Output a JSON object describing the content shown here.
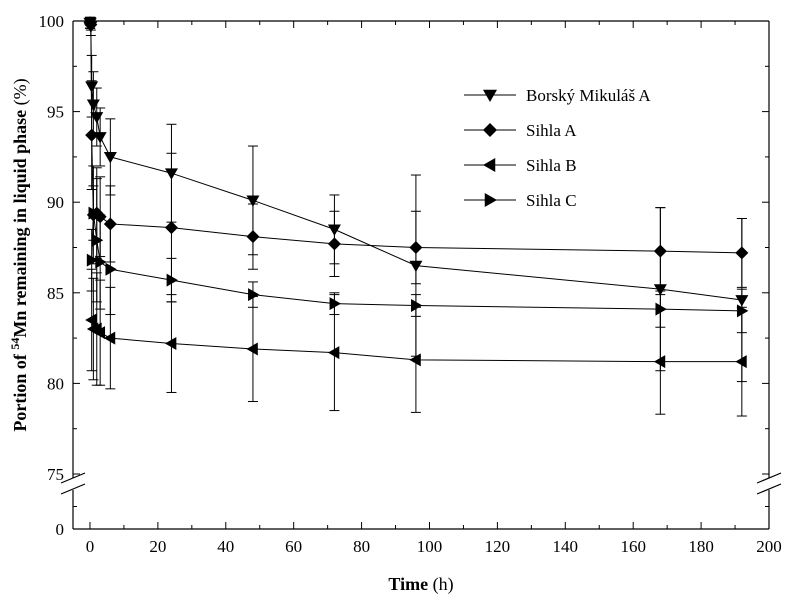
{
  "chart_data": {
    "type": "line",
    "title": "",
    "xlabel": {
      "bold": "Time",
      "unit": " (h)"
    },
    "ylabel": {
      "bold_prefix": "Portion of ",
      "superscript": "54",
      "bold_suffix": "Mn remaining in liquid phase",
      "unit": " (%)"
    },
    "xlim": [
      -5,
      200
    ],
    "x_ticks": [
      0,
      20,
      40,
      60,
      80,
      100,
      120,
      140,
      160,
      180,
      200
    ],
    "y_ticks_upper": [
      75,
      80,
      85,
      90,
      95,
      100
    ],
    "y_ticks_lower": [
      0
    ],
    "y_axis_break": [
      0,
      75
    ],
    "grid": false,
    "legend_position": "top-right",
    "series": [
      {
        "name": "Borský Mikuláš A",
        "marker": "triangle-down",
        "x": [
          0,
          0.08,
          0.25,
          0.5,
          1,
          2,
          3,
          6,
          24,
          48,
          72,
          96,
          168,
          192
        ],
        "y": [
          99.9,
          99.9,
          99.7,
          96.4,
          95.4,
          94.7,
          93.6,
          92.5,
          91.6,
          90.1,
          88.5,
          86.5,
          85.2,
          84.6
        ],
        "err": [
          0.3,
          0.3,
          0.5,
          1.7,
          1.8,
          1.6,
          1.6,
          2.1,
          2.7,
          3.0,
          1.9,
          5.0,
          4.5,
          4.5
        ]
      },
      {
        "name": "Sihla A",
        "marker": "diamond",
        "x": [
          0,
          0.25,
          0.5,
          1,
          2,
          3,
          6,
          24,
          48,
          72,
          96,
          168,
          192
        ],
        "y": [
          99.9,
          99.8,
          93.7,
          89.3,
          89.4,
          89.2,
          88.8,
          88.6,
          88.1,
          87.7,
          87.5,
          87.3,
          87.2
        ],
        "err": [
          0.3,
          0.3,
          3.0,
          2.7,
          2.5,
          2.2,
          2.1,
          4.1,
          1.8,
          1.8,
          2.0,
          2.4,
          1.9
        ]
      },
      {
        "name": "Sihla B",
        "marker": "triangle-left",
        "x": [
          0.5,
          1,
          2,
          3,
          6,
          24,
          48,
          72,
          96,
          168,
          192
        ],
        "y": [
          83.5,
          83.0,
          83.0,
          82.8,
          82.5,
          82.2,
          81.9,
          81.7,
          81.3,
          81.2,
          81.2
        ],
        "err": [
          2.8,
          2.8,
          3.1,
          2.9,
          2.8,
          2.7,
          2.9,
          3.2,
          2.9,
          2.9,
          3.0
        ]
      },
      {
        "name": "Sihla C",
        "marker": "triangle-right",
        "x": [
          0.5,
          1,
          2,
          3,
          6,
          24,
          48,
          72,
          96,
          168,
          192
        ],
        "y": [
          86.8,
          89.4,
          87.9,
          86.7,
          86.3,
          85.7,
          84.9,
          84.4,
          84.3,
          84.1,
          84.0
        ],
        "err": [
          1.7,
          1.5,
          3.4,
          2.6,
          2.5,
          1.2,
          0.7,
          0.6,
          0.6,
          1.0,
          1.2
        ]
      }
    ]
  }
}
